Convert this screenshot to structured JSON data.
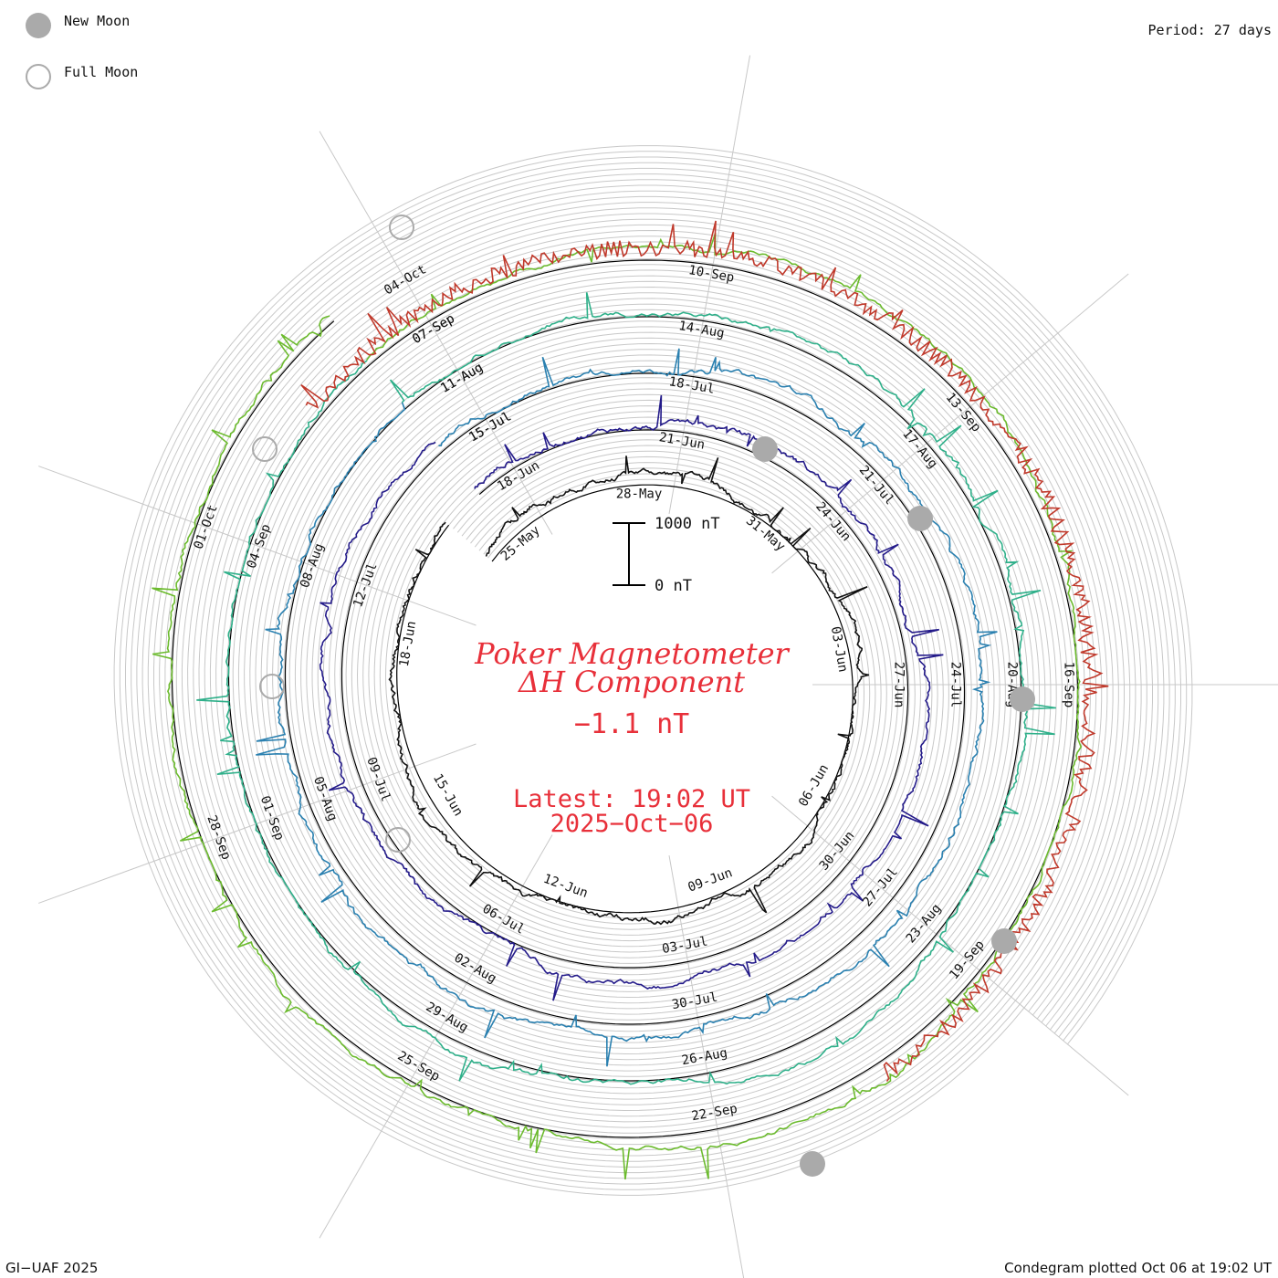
{
  "legend": {
    "new_moon": "New Moon",
    "full_moon": "Full Moon"
  },
  "period_label": "Period: 27 days",
  "title": {
    "line1": "Poker Magnetometer",
    "line2": "ΔH Component",
    "current_value": "−1.1 nT",
    "latest_label": "Latest: 19:02 UT",
    "latest_date": "2025−Oct−06"
  },
  "scale_bar": {
    "top_label": "1000 nT",
    "bottom_label": "0 nT"
  },
  "footer": {
    "credit": "GI−UAF 2025",
    "plotted": "Condegram plotted Oct 06 at 19:02 UT"
  },
  "colors": {
    "title": "#e8303a",
    "grid": "#bbbbbb",
    "baseline": "#000000",
    "moon_fill": "#aaaaaa"
  },
  "chart_data": {
    "type": "line",
    "subtype": "condegram-spiral",
    "title": "Poker Magnetometer ΔH Component",
    "period_days": 27,
    "scale_nT": [
      0,
      1000
    ],
    "series": [
      {
        "name": "cycle-1",
        "color": "#111111",
        "start_date": "2025-05-23",
        "date_labels": [
          "25-May",
          "28-May",
          "31-May",
          "03-Jun",
          "06-Jun",
          "09-Jun",
          "12-Jun",
          "15-Jun",
          "18-Jun"
        ],
        "start_angle_deg": -50,
        "span_deg": 360
      },
      {
        "name": "cycle-2",
        "color": "#241b8a",
        "start_date": "2025-06-18",
        "date_labels": [
          "18-Jun",
          "21-Jun",
          "24-Jun",
          "27-Jun",
          "30-Jun",
          "03-Jul",
          "06-Jul",
          "09-Jul",
          "12-Jul",
          "15-Jul"
        ],
        "start_angle_deg": -40,
        "span_deg": 360
      },
      {
        "name": "cycle-3",
        "color": "#2a80b0",
        "start_date": "2025-07-15",
        "date_labels": [
          "15-Jul",
          "18-Jul",
          "21-Jul",
          "24-Jul",
          "27-Jul",
          "30-Jul",
          "02-Aug",
          "05-Aug",
          "08-Aug",
          "11-Aug"
        ],
        "start_angle_deg": -40,
        "span_deg": 360
      },
      {
        "name": "cycle-4",
        "color": "#2fb08a",
        "start_date": "2025-08-11",
        "date_labels": [
          "11-Aug",
          "14-Aug",
          "17-Aug",
          "20-Aug",
          "23-Aug",
          "26-Aug",
          "29-Aug",
          "01-Sep",
          "04-Sep",
          "07-Sep"
        ],
        "start_angle_deg": -40,
        "span_deg": 360
      },
      {
        "name": "cycle-5",
        "color": "#6cbb2e",
        "start_date": "2025-09-07",
        "date_labels": [
          "07-Sep",
          "10-Sep",
          "13-Sep",
          "16-Sep",
          "19-Sep",
          "22-Sep",
          "25-Sep",
          "28-Sep",
          "01-Oct",
          "04-Oct"
        ],
        "start_angle_deg": -40,
        "span_deg": 360
      }
    ],
    "outer_segments": [
      {
        "name": "aug-segment",
        "color": "#7fbf2e",
        "labels": [
          "14-Aug",
          "17-Aug",
          "20-Aug"
        ]
      },
      {
        "name": "sep-segment",
        "color": "#b8860b",
        "labels": [
          "10-Sep",
          "13-Sep",
          "16-Sep",
          "19-Sep",
          "22-Sep",
          "25-Sep",
          "28-Sep",
          "01-Oct"
        ]
      },
      {
        "name": "oct-segment",
        "color": "#c0392b",
        "labels": [
          "04-Oct",
          "07-Sep"
        ]
      }
    ],
    "new_moons": [
      "2025-05-27",
      "2025-06-25",
      "2025-07-24",
      "2025-08-23",
      "2025-09-21"
    ],
    "full_moons": [
      "2025-06-11",
      "2025-07-10",
      "2025-08-09",
      "2025-09-07"
    ]
  }
}
